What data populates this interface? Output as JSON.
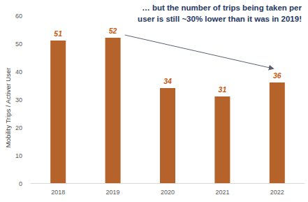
{
  "chart_data": {
    "type": "bar",
    "y_label": "Mobility Trips / Activer User",
    "annotation": [
      "… but the number of trips being taken per",
      "user is still ~30% lower than it was in 2019!"
    ],
    "categories": [
      "2018",
      "2019",
      "2020",
      "2021",
      "2022"
    ],
    "values": [
      51,
      52,
      34,
      31,
      36
    ],
    "color": "#b5622b",
    "ylim": [
      0,
      60
    ],
    "yticks": [
      0,
      10,
      20,
      30,
      40,
      50,
      60
    ],
    "grid": false,
    "data_labels": true
  }
}
